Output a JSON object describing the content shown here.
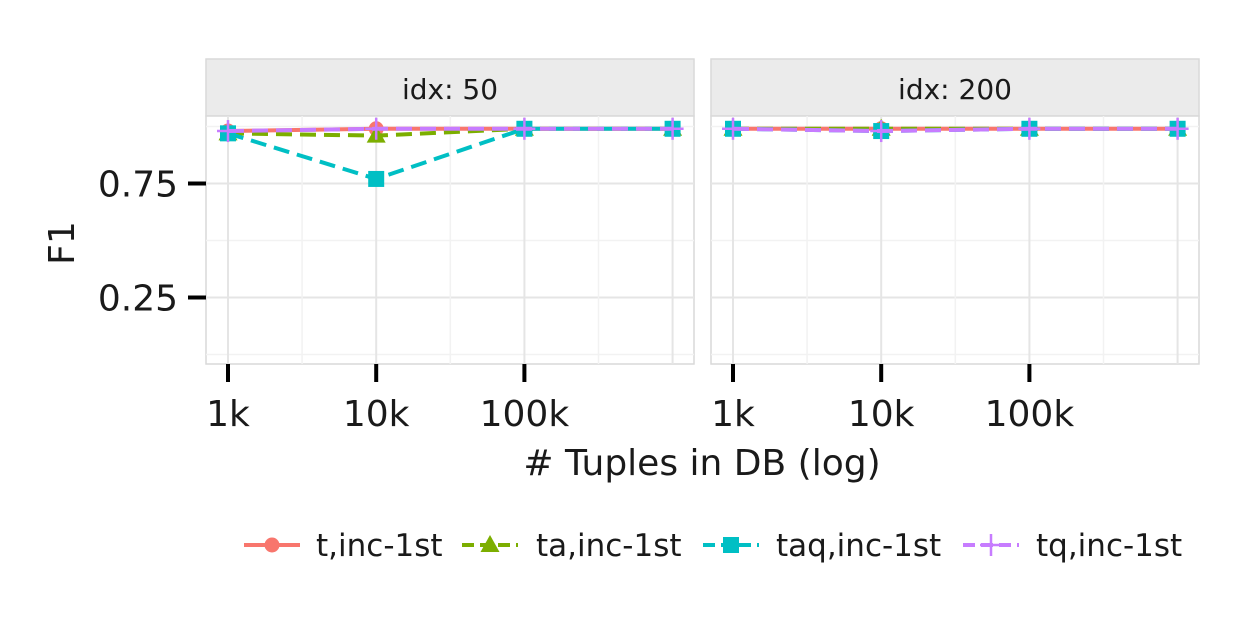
{
  "chart_data": {
    "type": "line",
    "ylabel": "F1",
    "xlabel": "# Tuples in DB (log)",
    "x_scale": "log",
    "x_ticks": [
      1000,
      10000,
      100000
    ],
    "x_tick_labels": [
      "1k",
      "10k",
      "100k"
    ],
    "x_range": [
      1000,
      1000000
    ],
    "y_ticks": [
      0.25,
      0.75
    ],
    "y_tick_labels": [
      "0.25",
      "0.75"
    ],
    "ylim": [
      0.0,
      1.05
    ],
    "grid": true,
    "legend_position": "bottom",
    "series": [
      {
        "name": "t,inc-1st",
        "color": "#F8766D",
        "line": "solid",
        "marker": "circle"
      },
      {
        "name": "ta,inc-1st",
        "color": "#7CAE00",
        "line": "dashed",
        "marker": "triangle"
      },
      {
        "name": "taq,inc-1st",
        "color": "#00BFC4",
        "line": "dashed",
        "marker": "square"
      },
      {
        "name": "tq,inc-1st",
        "color": "#C77CFF",
        "line": "dashed",
        "marker": "cross"
      }
    ],
    "panels": [
      {
        "label": "idx: 50",
        "x": [
          1000,
          10000,
          100000,
          1000000
        ],
        "values": {
          "t,inc-1st": [
            0.98,
            0.99,
            0.99,
            0.99
          ],
          "ta,inc-1st": [
            0.97,
            0.96,
            0.99,
            0.99
          ],
          "taq,inc-1st": [
            0.97,
            0.77,
            0.99,
            0.99
          ],
          "tq,inc-1st": [
            0.98,
            0.99,
            0.99,
            0.99
          ]
        }
      },
      {
        "label": "idx: 200",
        "x": [
          1000,
          10000,
          100000,
          1000000
        ],
        "values": {
          "t,inc-1st": [
            0.99,
            0.99,
            0.99,
            0.99
          ],
          "ta,inc-1st": [
            0.99,
            0.99,
            0.99,
            0.99
          ],
          "taq,inc-1st": [
            0.99,
            0.98,
            0.99,
            0.99
          ],
          "tq,inc-1st": [
            0.99,
            0.98,
            0.99,
            0.99
          ]
        }
      }
    ]
  }
}
